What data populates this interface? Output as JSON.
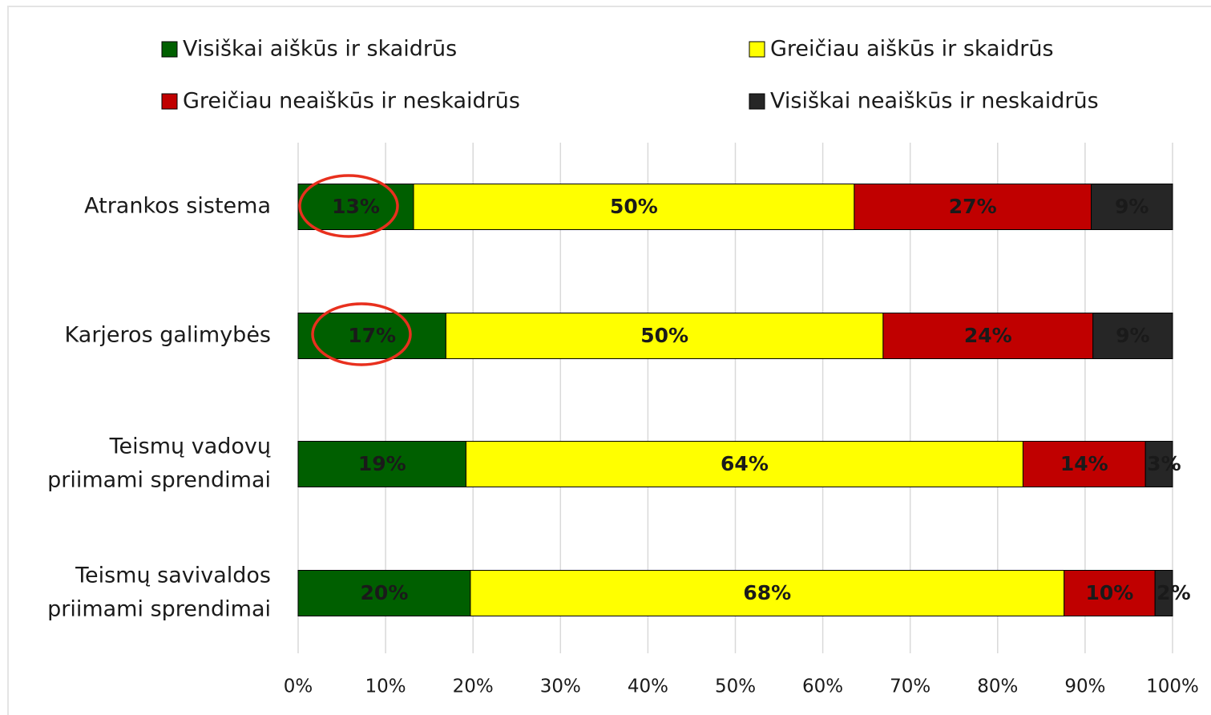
{
  "chart_data": {
    "type": "stacked_barh",
    "categories": [
      [
        "Atrankos sistema"
      ],
      [
        "Karjeros galimybės"
      ],
      [
        "Teismų vadovų",
        "priimami sprendimai"
      ],
      [
        "Teismų savivaldos",
        "priimami sprendimai"
      ]
    ],
    "series": [
      {
        "name": "Visiškai aiškūs ir skaidrūs",
        "color": "#005f00",
        "label_color": "#ffffff",
        "values": [
          13.2,
          16.9,
          19.2,
          19.7
        ],
        "value_labels": [
          "13%",
          "17%",
          "19%",
          "20%"
        ]
      },
      {
        "name": "Greičiau aiškūs ir skaidrūs",
        "color": "#ffff00",
        "label_color": "#000000",
        "values": [
          50.4,
          50.0,
          63.7,
          67.9
        ],
        "value_labels": [
          "50%",
          "50%",
          "64%",
          "68%"
        ]
      },
      {
        "name": "Greičiau neaiškūs ir neskaidrūs",
        "color": "#c00000",
        "label_color": "#ffffff",
        "values": [
          27.1,
          24.0,
          14.0,
          10.4
        ],
        "value_labels": [
          "27%",
          "24%",
          "14%",
          "10%"
        ]
      },
      {
        "name": "Visiškai neaiškūs ir neskaidrūs",
        "color": "#262626",
        "label_color": "#ffffff",
        "values": [
          9.3,
          9.1,
          3.1,
          2.0
        ],
        "value_labels": [
          "9%",
          "9%",
          "3%",
          "2%"
        ]
      }
    ],
    "xlim": [
      0,
      100
    ],
    "xticks": [
      {
        "value": 0,
        "label": "0%"
      },
      {
        "value": 10,
        "label": "10%"
      },
      {
        "value": 20,
        "label": "20%"
      },
      {
        "value": 30,
        "label": "30%"
      },
      {
        "value": 40,
        "label": "40%"
      },
      {
        "value": 50,
        "label": "50%"
      },
      {
        "value": 60,
        "label": "60%"
      },
      {
        "value": 70,
        "label": "70%"
      },
      {
        "value": 80,
        "label": "80%"
      },
      {
        "value": 90,
        "label": "90%"
      },
      {
        "value": 100,
        "label": "100%"
      }
    ],
    "grid": true,
    "legend": "top"
  }
}
